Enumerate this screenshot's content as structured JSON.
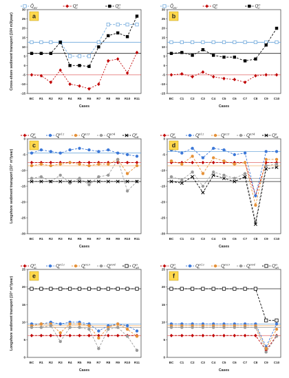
{
  "panels": [
    {
      "label": "a",
      "ylabel": "Cross-shore sediment transport (104 m3/year)",
      "xlabel": "Cases",
      "categories": [
        "BC",
        "R1",
        "R2",
        "R3",
        "R4",
        "R5",
        "R6",
        "R7",
        "R8",
        "R9",
        "R10",
        "R11"
      ],
      "ylim": [
        -15,
        30
      ],
      "yticks": [
        -15,
        -10,
        -5,
        0,
        5,
        10,
        15,
        20,
        25,
        30
      ],
      "refs": [
        {
          "value": 12.5,
          "color": "#6fa8dc"
        },
        {
          "value": -5,
          "color": "#e06666"
        },
        {
          "value": 6.5,
          "color": "#222222"
        }
      ],
      "legend": [
        {
          "sym": "Q̄",
          "sub": "RV"
        },
        {
          "sym": "Q",
          "sup": "S",
          "sub": "C"
        },
        {
          "sym": "Q",
          "sup": "O",
          "sub": "C"
        }
      ],
      "series": [
        {
          "name": "Q̄RV",
          "color": "#6fa8dc",
          "marker": "square-open",
          "dash": "3,2",
          "values": [
            12.5,
            12.5,
            12.5,
            12.5,
            5,
            5,
            5,
            12.5,
            22,
            22,
            22,
            22
          ]
        },
        {
          "name": "QcS",
          "color": "#c00000",
          "marker": "diamond",
          "dash": "2,2",
          "values": [
            -5,
            -5.5,
            -9,
            -2.5,
            -10,
            -11,
            -12.5,
            -10,
            2.5,
            3.5,
            -4,
            7
          ]
        },
        {
          "name": "QcO",
          "color": "#000000",
          "marker": "square",
          "dash": "3,2",
          "values": [
            6.5,
            6.5,
            6.5,
            12.5,
            0,
            0,
            -0.5,
            10,
            16,
            17.5,
            15.5,
            26.5
          ]
        }
      ]
    },
    {
      "label": "b",
      "ylabel": "",
      "xlabel": "Cases",
      "categories": [
        "BC",
        "C1",
        "C2",
        "C3",
        "C4",
        "C5",
        "C6",
        "C7",
        "C8",
        "C9",
        "C10"
      ],
      "ylim": [
        -15,
        30
      ],
      "yticks": [
        -15,
        -10,
        -5,
        0,
        5,
        10,
        15,
        20,
        25,
        30
      ],
      "refs": [
        {
          "value": 12.5,
          "color": "#6fa8dc"
        },
        {
          "value": -5,
          "color": "#e06666"
        },
        {
          "value": 6.5,
          "color": "#222222"
        }
      ],
      "legend": [
        {
          "sym": "Q̄",
          "sub": "RV"
        },
        {
          "sym": "Q",
          "sup": "S",
          "sub": "C"
        },
        {
          "sym": "Q",
          "sup": "O",
          "sub": "C"
        }
      ],
      "series": [
        {
          "name": "Q̄RV",
          "color": "#6fa8dc",
          "marker": "square-open",
          "dash": "3,2",
          "values": [
            12.5,
            12.5,
            12.5,
            12.5,
            12.5,
            12.5,
            12.5,
            12.5,
            12.5,
            12.5,
            12.5
          ]
        },
        {
          "name": "QcS",
          "color": "#c00000",
          "marker": "diamond",
          "dash": "2,2",
          "values": [
            -5,
            -4.5,
            -6,
            -3.5,
            -6,
            -7,
            -7.5,
            -9,
            -5.5,
            -5,
            -5
          ]
        },
        {
          "name": "QcO",
          "color": "#000000",
          "marker": "square",
          "dash": "3,2",
          "values": [
            6.5,
            7,
            5.5,
            8.5,
            5.5,
            4.5,
            4.5,
            2.5,
            3.5,
            11,
            20
          ]
        }
      ]
    },
    {
      "label": "c",
      "ylabel": "Longshore sediment transport (10⁴ m³/year)",
      "xlabel": "Cases",
      "categories": [
        "BC",
        "R1",
        "R2",
        "R3",
        "R4",
        "R5",
        "R6",
        "R7",
        "R8",
        "R9",
        "R10",
        "R11"
      ],
      "ylim": [
        -30,
        0
      ],
      "yticks": [
        -30,
        -25,
        -20,
        -15,
        -10,
        -5,
        0
      ],
      "refs": [
        {
          "value": -4.5,
          "color": "#6fa8dc"
        },
        {
          "value": -7.5,
          "color": "#e06666"
        },
        {
          "value": -8.5,
          "color": "#f6b26b"
        },
        {
          "value": -12.5,
          "color": "#999999"
        },
        {
          "value": -13.5,
          "color": "#222222"
        }
      ],
      "legend": [
        {
          "sym": "Q",
          "sup": "S",
          "sub": "aL"
        },
        {
          "sym": "Q",
          "sup": "S12",
          "sub": "n"
        },
        {
          "sym": "Q",
          "sup": "S23",
          "sub": "n"
        },
        {
          "sym": "Q",
          "sup": "S34",
          "sub": "n"
        },
        {
          "sym": "Q",
          "sup": "S",
          "sub": "aR"
        }
      ],
      "series": [
        {
          "name": "QaLS",
          "color": "#c00000",
          "marker": "diamond",
          "dash": "3,2",
          "values": [
            -7.5,
            -7.5,
            -7.5,
            -7.5,
            -7.5,
            -7.5,
            -7.5,
            -7.5,
            -7.5,
            -7.5,
            -7.5,
            -7.5
          ]
        },
        {
          "name": "QnS12",
          "color": "#3c78d8",
          "marker": "circle",
          "dash": "3,2",
          "values": [
            -4.5,
            -3.5,
            -4,
            -4.5,
            -3.5,
            -3,
            -3.5,
            -4,
            -3.5,
            -4.5,
            -5,
            -5.5
          ]
        },
        {
          "name": "QnS23",
          "color": "#e69138",
          "marker": "circle",
          "dash": "3,2",
          "values": [
            -8.5,
            -8,
            -8.5,
            -8,
            -7.5,
            -8,
            -8.5,
            -8,
            -8,
            -6.5,
            -11,
            -8.5
          ]
        },
        {
          "name": "QnS34",
          "color": "#999999",
          "marker": "circle",
          "dash": "3,2",
          "values": [
            -12.5,
            -12,
            -13.5,
            -11.5,
            -14,
            -12.5,
            -14.5,
            -12,
            -11.5,
            -6.5,
            -16.5,
            -13.5
          ]
        },
        {
          "name": "QaRS",
          "color": "#000000",
          "marker": "cross",
          "dash": "3,2",
          "values": [
            -13.5,
            -13.5,
            -13.5,
            -13.5,
            -13.5,
            -13.5,
            -13.5,
            -13.5,
            -13.5,
            -13.5,
            -13.5,
            -13.5
          ]
        }
      ]
    },
    {
      "label": "d",
      "ylabel": "",
      "xlabel": "Cases",
      "categories": [
        "BC",
        "C1",
        "C2",
        "C3",
        "C4",
        "C5",
        "C6",
        "C7",
        "C8",
        "C9",
        "C10"
      ],
      "ylim": [
        -30,
        0
      ],
      "yticks": [
        -30,
        -25,
        -20,
        -15,
        -10,
        -5,
        0
      ],
      "refs": [
        {
          "value": -4,
          "color": "#6fa8dc"
        },
        {
          "value": -7.5,
          "color": "#e06666"
        },
        {
          "value": -8.5,
          "color": "#f6b26b"
        },
        {
          "value": -12.5,
          "color": "#999999"
        },
        {
          "value": -13.5,
          "color": "#222222"
        }
      ],
      "legend": [
        {
          "sym": "Q",
          "sup": "S",
          "sub": "aL"
        },
        {
          "sym": "Q",
          "sup": "S12",
          "sub": "n"
        },
        {
          "sym": "Q",
          "sup": "S23",
          "sub": "n"
        },
        {
          "sym": "Q",
          "sup": "S34",
          "sub": "n"
        },
        {
          "sym": "Q",
          "sup": "S",
          "sub": "aR"
        }
      ],
      "series": [
        {
          "name": "QaLS",
          "color": "#c00000",
          "marker": "diamond",
          "dash": "3,2",
          "values": [
            -7.5,
            -7.5,
            -7.5,
            -7.5,
            -7.5,
            -7.5,
            -7.5,
            -7.5,
            -18,
            -7.5,
            -7.5
          ]
        },
        {
          "name": "QnS12",
          "color": "#3c78d8",
          "marker": "circle",
          "dash": "3,2",
          "values": [
            -3.5,
            -4.5,
            -3,
            -6,
            -3,
            -3.5,
            -5,
            -4.5,
            -18,
            -4,
            -4
          ]
        },
        {
          "name": "QnS23",
          "color": "#e69138",
          "marker": "circle",
          "dash": "3,2",
          "values": [
            -7,
            -8,
            -5.5,
            -11,
            -6,
            -7,
            -8,
            -7.5,
            -21,
            -6.5,
            -6.5
          ]
        },
        {
          "name": "QnS34",
          "color": "#999999",
          "marker": "circle",
          "dash": "3,2",
          "values": [
            -12,
            -13,
            -10.5,
            -15,
            -10.5,
            -11.5,
            -12.5,
            -11,
            -26,
            -8.5,
            -8
          ]
        },
        {
          "name": "QaRS",
          "color": "#000000",
          "marker": "cross",
          "dash": "3,2",
          "values": [
            -13.5,
            -14,
            -12,
            -17,
            -11.5,
            -12.5,
            -13.5,
            -12,
            -27,
            -9.5,
            -9
          ]
        }
      ]
    },
    {
      "label": "e",
      "ylabel": "Longshore sediment transport (10⁴ m³/year)",
      "xlabel": "Cases",
      "categories": [
        "BC",
        "R1",
        "R2",
        "R3",
        "R4",
        "R5",
        "R6",
        "R7",
        "R8",
        "R9",
        "R10",
        "R11"
      ],
      "ylim": [
        0,
        25
      ],
      "yticks": [
        0,
        5,
        10,
        15,
        20,
        25
      ],
      "refs": [
        {
          "value": 19.5,
          "color": "#222222"
        },
        {
          "value": 9.5,
          "color": "#6fa8dc"
        },
        {
          "value": 9,
          "color": "#f6b26b"
        },
        {
          "value": 8.5,
          "color": "#999999"
        },
        {
          "value": 6.2,
          "color": "#e06666"
        }
      ],
      "legend": [
        {
          "sym": "Q",
          "sup": "O",
          "sub": "aL"
        },
        {
          "sym": "Q",
          "sup": "O12",
          "sub": "n"
        },
        {
          "sym": "Q",
          "sup": "O23",
          "sub": "n"
        },
        {
          "sym": "Q",
          "sup": "O34",
          "sub": "n"
        },
        {
          "sym": "Q",
          "sup": "O",
          "sub": "aR"
        }
      ],
      "series": [
        {
          "name": "QaLO",
          "color": "#c00000",
          "marker": "diamond",
          "dash": "3,2",
          "values": [
            6.2,
            6.2,
            6.2,
            6.2,
            6.2,
            6.2,
            6.2,
            6.2,
            6.2,
            6.2,
            6.2,
            6.2
          ]
        },
        {
          "name": "QnO12",
          "color": "#3c78d8",
          "marker": "circle",
          "dash": "3,2",
          "values": [
            9.5,
            9.5,
            10,
            9.5,
            10,
            10,
            9.5,
            7.5,
            9,
            9.5,
            9,
            7.5
          ]
        },
        {
          "name": "QnO23",
          "color": "#e69138",
          "marker": "circle",
          "dash": "3,2",
          "values": [
            9,
            9.5,
            9.5,
            7,
            9.5,
            9.5,
            9,
            5.5,
            8.5,
            9.5,
            8,
            6
          ]
        },
        {
          "name": "QnO34",
          "color": "#999999",
          "marker": "circle",
          "dash": "3,2",
          "values": [
            8.5,
            8.5,
            9,
            4.5,
            8.5,
            8.5,
            8,
            2.5,
            8,
            8.5,
            6,
            2
          ]
        },
        {
          "name": "QaRO",
          "color": "#000000",
          "marker": "square-open",
          "dash": "3,2",
          "values": [
            19.5,
            19.5,
            19.5,
            19.5,
            19.5,
            19.5,
            19.5,
            19.5,
            19.5,
            19.5,
            19.5,
            19.5
          ]
        }
      ]
    },
    {
      "label": "f",
      "ylabel": "",
      "xlabel": "Cases",
      "categories": [
        "BC",
        "C1",
        "C2",
        "C3",
        "C4",
        "C5",
        "C6",
        "C7",
        "C8",
        "C9",
        "C10"
      ],
      "ylim": [
        0,
        25
      ],
      "yticks": [
        0,
        5,
        10,
        15,
        20,
        25
      ],
      "refs": [
        {
          "value": 19.5,
          "color": "#222222"
        },
        {
          "value": 9.5,
          "color": "#6fa8dc"
        },
        {
          "value": 9,
          "color": "#f6b26b"
        },
        {
          "value": 8.5,
          "color": "#999999"
        },
        {
          "value": 6.2,
          "color": "#e06666"
        }
      ],
      "legend": [
        {
          "sym": "Q",
          "sup": "O",
          "sub": "aL"
        },
        {
          "sym": "Q",
          "sup": "O12",
          "sub": "n"
        },
        {
          "sym": "Q",
          "sup": "O23",
          "sub": "n"
        },
        {
          "sym": "Q",
          "sup": "O34",
          "sub": "n"
        },
        {
          "sym": "Q",
          "sup": "O",
          "sub": "aR"
        }
      ],
      "series": [
        {
          "name": "QaLO",
          "color": "#c00000",
          "marker": "diamond",
          "dash": "3,2",
          "values": [
            6.2,
            6.2,
            6.2,
            6.2,
            6.2,
            6.2,
            6.2,
            6.2,
            6.2,
            2,
            6.2
          ]
        },
        {
          "name": "QnO12",
          "color": "#3c78d8",
          "marker": "circle",
          "dash": "3,2",
          "values": [
            9.5,
            9.5,
            9.5,
            9.5,
            9.5,
            9.5,
            9.5,
            9.5,
            9.5,
            3,
            9.5
          ]
        },
        {
          "name": "QnO23",
          "color": "#e69138",
          "marker": "circle",
          "dash": "3,2",
          "values": [
            9,
            9,
            9,
            9,
            9,
            9,
            9,
            9,
            9,
            2.5,
            8
          ]
        },
        {
          "name": "QnO34",
          "color": "#999999",
          "marker": "circle",
          "dash": "3,2",
          "values": [
            8.5,
            8.5,
            8.5,
            8.5,
            8.5,
            8.5,
            8.5,
            8.5,
            8.5,
            1.5,
            6
          ]
        },
        {
          "name": "QaRO",
          "color": "#000000",
          "marker": "square-open",
          "dash": "3,2",
          "values": [
            19.5,
            19.5,
            19.5,
            19.5,
            19.5,
            19.5,
            19.5,
            19.5,
            19.5,
            10.5,
            10.5
          ]
        }
      ]
    }
  ]
}
